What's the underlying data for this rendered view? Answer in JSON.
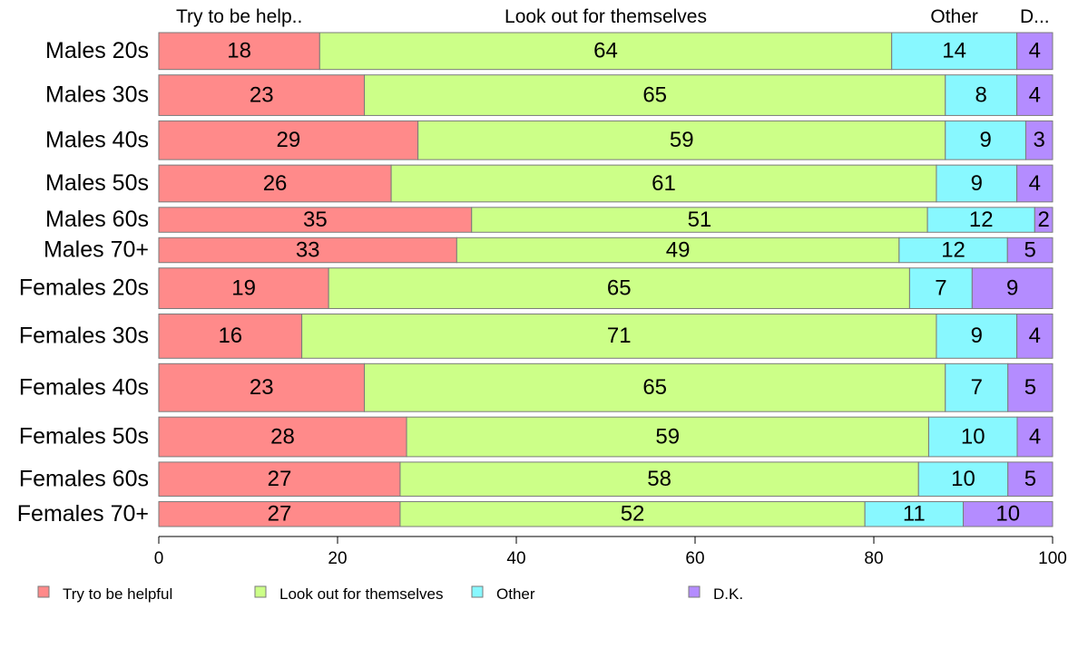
{
  "chart_data": {
    "type": "bar",
    "orientation": "horizontal",
    "stacked": true,
    "normalized_percent": true,
    "categories": [
      "Males 20s",
      "Males 30s",
      "Males 40s",
      "Males 50s",
      "Males 60s",
      "Males 70+",
      "Females 20s",
      "Females 30s",
      "Females 40s",
      "Females 50s",
      "Females 60s",
      "Females 70+"
    ],
    "top_labels": [
      "Try to be help..",
      "Look out for themselves",
      "Other",
      "D..."
    ],
    "series": [
      {
        "name": "Try to be helpful",
        "color": "#ff8a8a",
        "values": [
          18,
          23,
          29,
          26,
          35,
          33,
          19,
          16,
          23,
          28,
          27,
          27
        ]
      },
      {
        "name": "Look out for themselves",
        "color": "#ccff88",
        "values": [
          64,
          65,
          59,
          61,
          51,
          49,
          65,
          71,
          65,
          59,
          58,
          52
        ]
      },
      {
        "name": "Other",
        "color": "#88f8ff",
        "values": [
          14,
          8,
          9,
          9,
          12,
          12,
          7,
          9,
          7,
          10,
          10,
          11
        ]
      },
      {
        "name": "D.K.",
        "color": "#b48cff",
        "values": [
          4,
          4,
          3,
          4,
          2,
          5,
          9,
          4,
          5,
          4,
          5,
          10
        ]
      }
    ],
    "bar_widths": [
      4,
      4.4,
      4.2,
      4,
      2.7,
      2.7,
      4.4,
      4.8,
      5.2,
      4.3,
      3.7,
      2.7
    ],
    "xlim": [
      0,
      100
    ],
    "xticks": [
      "0",
      "20",
      "40",
      "60",
      "80",
      "100"
    ],
    "title": "",
    "xlabel": "",
    "ylabel": "",
    "grid": false,
    "legend_position": "bottom"
  }
}
